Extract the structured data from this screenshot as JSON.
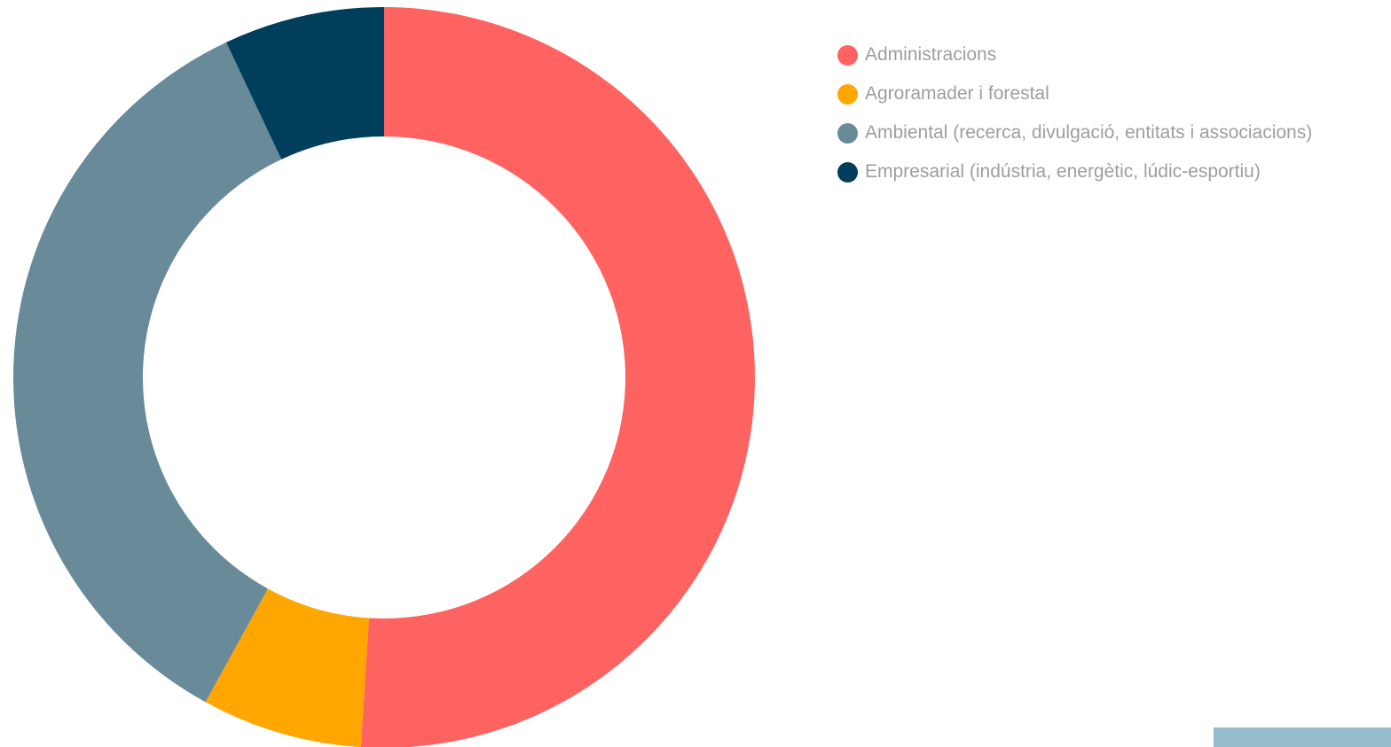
{
  "chart_data": {
    "type": "pie",
    "donut": true,
    "title": "",
    "legend_position": "top-right",
    "categories": [
      "Administracions",
      "Agroramader i forestal",
      "Ambiental (recerca, divulgació, entitats i associacions)",
      "Empresarial (indústria, energètic, lúdic-esportiu)"
    ],
    "values": [
      51,
      7,
      35,
      7
    ],
    "colors": [
      "#ff6361",
      "#ffa600",
      "#688a99",
      "#003f5c"
    ]
  },
  "legend": {
    "items": [
      {
        "label": "Administracions",
        "color": "#ff6361"
      },
      {
        "label": "Agroramader i forestal",
        "color": "#ffa600"
      },
      {
        "label": "Ambiental (recerca, divulgació, entitats i associacions)",
        "color": "#688a99"
      },
      {
        "label": "Empresarial (indústria, energètic, lúdic-esportiu)",
        "color": "#003f5c"
      }
    ]
  },
  "decorations": {
    "corner_tab_color": "#96bccb"
  }
}
